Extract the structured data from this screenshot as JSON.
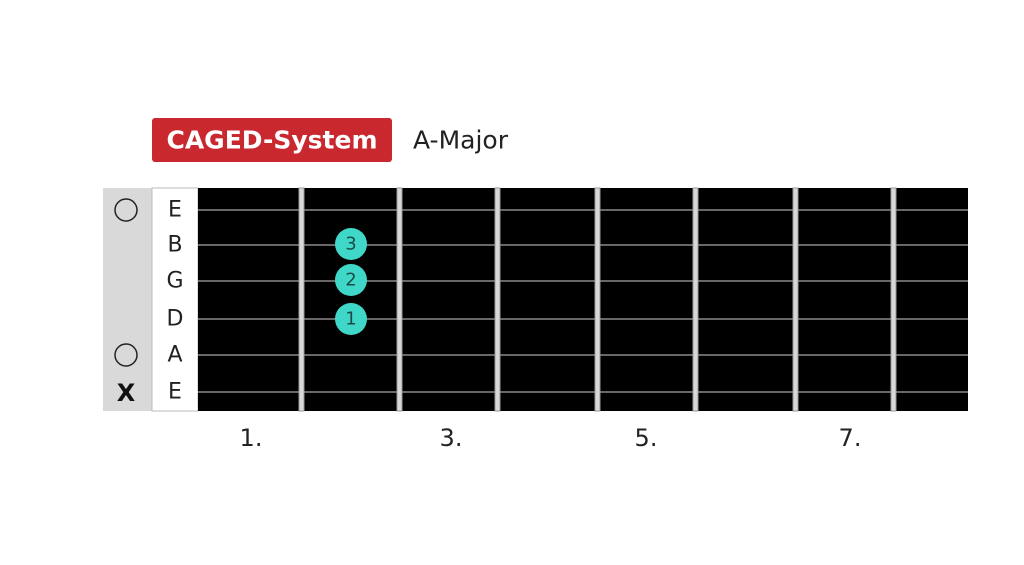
{
  "header": {
    "badge": "CAGED-System",
    "title": "A-Major"
  },
  "strings": [
    {
      "label": "E"
    },
    {
      "label": "B"
    },
    {
      "label": "G"
    },
    {
      "label": "D"
    },
    {
      "label": "A"
    },
    {
      "label": "E",
      "marker": "X"
    }
  ],
  "dots": [
    {
      "label": "3"
    },
    {
      "label": "2"
    },
    {
      "label": "1"
    }
  ],
  "fret_numbers": [
    "1.",
    "3.",
    "5.",
    "7."
  ]
}
